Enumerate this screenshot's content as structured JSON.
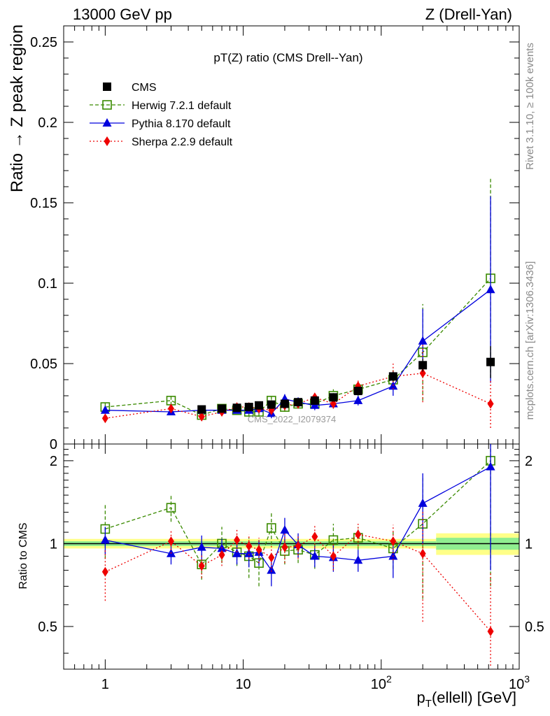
{
  "header": {
    "left": "13000 GeV pp",
    "right": "Z (Drell-Yan)"
  },
  "side_labels": {
    "rivet": "Rivet 3.1.10, ≥ 100k events",
    "mcplots": "mcplots.cern.ch [arXiv:1306.3436]"
  },
  "watermark": "CMS_2022_I2079374",
  "legend": {
    "title": "pT(Z) ratio (CMS Drell--Yan)",
    "entries": [
      "CMS",
      "Herwig 7.2.1 default",
      "Pythia 8.170 default",
      "Sherpa 2.2.9 default"
    ]
  },
  "colors": {
    "cms": "#000000",
    "herwig": "#3a8a00",
    "pythia": "#0000dd",
    "sherpa": "#ee0000",
    "band_inner": "#90ee90",
    "band_outer": "#ffff88"
  },
  "chart_data": {
    "type": "scatter",
    "title": "pT(Z) ratio (CMS Drell--Yan)",
    "xlabel": "p_T(ellell) [GeV]",
    "xscale": "log",
    "xlim": [
      0.5,
      1000
    ],
    "x_tick_labels": [
      {
        "value": 1,
        "base": "1",
        "exp": ""
      },
      {
        "value": 10,
        "base": "10",
        "exp": ""
      },
      {
        "value": 100,
        "base": "10",
        "exp": "2"
      },
      {
        "value": 1000,
        "base": "10",
        "exp": "3"
      }
    ],
    "main": {
      "ylabel": "Ratio → Z peak region",
      "ylim": [
        0,
        0.26
      ],
      "yticks": [
        0,
        0.05,
        0.1,
        0.15,
        0.2,
        0.25
      ],
      "ytick_labels": [
        "0",
        "0.05",
        "0.1",
        "0.15",
        "0.2",
        "0.25"
      ]
    },
    "ratio": {
      "ylabel": "Ratio to CMS",
      "ylim": [
        0.35,
        2.3
      ],
      "yticks": [
        0.5,
        1,
        2
      ],
      "ytick_labels": [
        "0.5",
        "1",
        "2"
      ]
    },
    "series": [
      {
        "name": "CMS",
        "style": "data",
        "x": [
          5,
          7,
          9,
          11,
          13,
          16,
          20,
          25,
          33,
          45,
          68,
          122,
          200,
          620
        ],
        "y": [
          0.0215,
          0.022,
          0.0225,
          0.023,
          0.024,
          0.0245,
          0.025,
          0.026,
          0.027,
          0.029,
          0.033,
          0.042,
          0.049,
          0.051
        ],
        "yerr": [
          0.001,
          0.001,
          0.001,
          0.001,
          0.001,
          0.001,
          0.001,
          0.001,
          0.001,
          0.0015,
          0.002,
          0.003,
          0.004,
          0.01
        ],
        "ratio": [
          1,
          1,
          1,
          1,
          1,
          1,
          1,
          1,
          1,
          1,
          1,
          1,
          1,
          1
        ]
      },
      {
        "name": "Herwig 7.2.1 default",
        "style": "dashed",
        "x": [
          1,
          3,
          5,
          7,
          9,
          11,
          13,
          16,
          20,
          25,
          33,
          45,
          68,
          122,
          200,
          620
        ],
        "y": [
          0.023,
          0.027,
          0.018,
          0.022,
          0.021,
          0.02,
          0.02,
          0.027,
          0.023,
          0.025,
          0.025,
          0.03,
          0.034,
          0.04,
          0.057,
          0.103
        ],
        "yerr": [
          0.003,
          0.003,
          0.002,
          0.002,
          0.002,
          0.003,
          0.003,
          0.003,
          0.003,
          0.003,
          0.003,
          0.004,
          0.004,
          0.006,
          0.03,
          0.062
        ],
        "ratio": [
          1.13,
          1.35,
          0.84,
          1.0,
          0.93,
          0.9,
          0.85,
          1.14,
          0.94,
          0.95,
          0.91,
          1.03,
          1.05,
          0.96,
          1.18,
          2.0
        ],
        "ratio_err": [
          0.25,
          0.15,
          0.1,
          0.15,
          0.1,
          0.15,
          0.15,
          0.15,
          0.1,
          0.1,
          0.1,
          0.15,
          0.1,
          0.15,
          0.55,
          1.3
        ]
      },
      {
        "name": "Pythia 8.170 default",
        "style": "solid",
        "x": [
          1,
          3,
          5,
          7,
          9,
          11,
          13,
          16,
          20,
          25,
          33,
          45,
          68,
          122,
          200,
          620
        ],
        "y": [
          0.021,
          0.02,
          0.021,
          0.021,
          0.021,
          0.021,
          0.022,
          0.019,
          0.028,
          0.026,
          0.024,
          0.025,
          0.027,
          0.036,
          0.064,
          0.096
        ],
        "yerr": [
          0.002,
          0.002,
          0.002,
          0.002,
          0.002,
          0.002,
          0.003,
          0.003,
          0.003,
          0.003,
          0.003,
          0.003,
          0.003,
          0.006,
          0.02,
          0.058
        ],
        "ratio": [
          1.03,
          0.92,
          0.97,
          0.96,
          0.92,
          0.92,
          0.93,
          0.8,
          1.12,
          0.99,
          0.9,
          0.89,
          0.87,
          0.9,
          1.4,
          1.9
        ],
        "ratio_err": [
          0.12,
          0.08,
          0.1,
          0.08,
          0.08,
          0.1,
          0.1,
          0.1,
          0.12,
          0.1,
          0.08,
          0.1,
          0.08,
          0.15,
          0.4,
          1.1
        ]
      },
      {
        "name": "Sherpa 2.2.9 default",
        "style": "dotted",
        "x": [
          1,
          3,
          5,
          7,
          9,
          11,
          13,
          16,
          20,
          25,
          33,
          45,
          68,
          122,
          200,
          620
        ],
        "y": [
          0.016,
          0.022,
          0.017,
          0.02,
          0.023,
          0.023,
          0.022,
          0.021,
          0.024,
          0.025,
          0.029,
          0.025,
          0.036,
          0.042,
          0.044,
          0.025
        ],
        "yerr": [
          0.002,
          0.002,
          0.002,
          0.002,
          0.002,
          0.002,
          0.002,
          0.002,
          0.003,
          0.003,
          0.003,
          0.003,
          0.004,
          0.008,
          0.018,
          0.015
        ],
        "ratio": [
          0.79,
          1.02,
          0.83,
          0.91,
          1.03,
          0.98,
          0.95,
          0.89,
          0.97,
          0.98,
          1.06,
          0.9,
          1.08,
          1.02,
          0.92,
          0.48
        ],
        "ratio_err": [
          0.17,
          0.1,
          0.08,
          0.08,
          0.1,
          0.1,
          0.1,
          0.1,
          0.12,
          0.1,
          0.1,
          0.1,
          0.1,
          0.15,
          0.4,
          0.3
        ]
      }
    ],
    "uncertainty_band": {
      "x_edges": [
        0.5,
        250,
        1000
      ],
      "inner": [
        0.02,
        0.05
      ],
      "outer": [
        0.04,
        0.09
      ]
    }
  }
}
